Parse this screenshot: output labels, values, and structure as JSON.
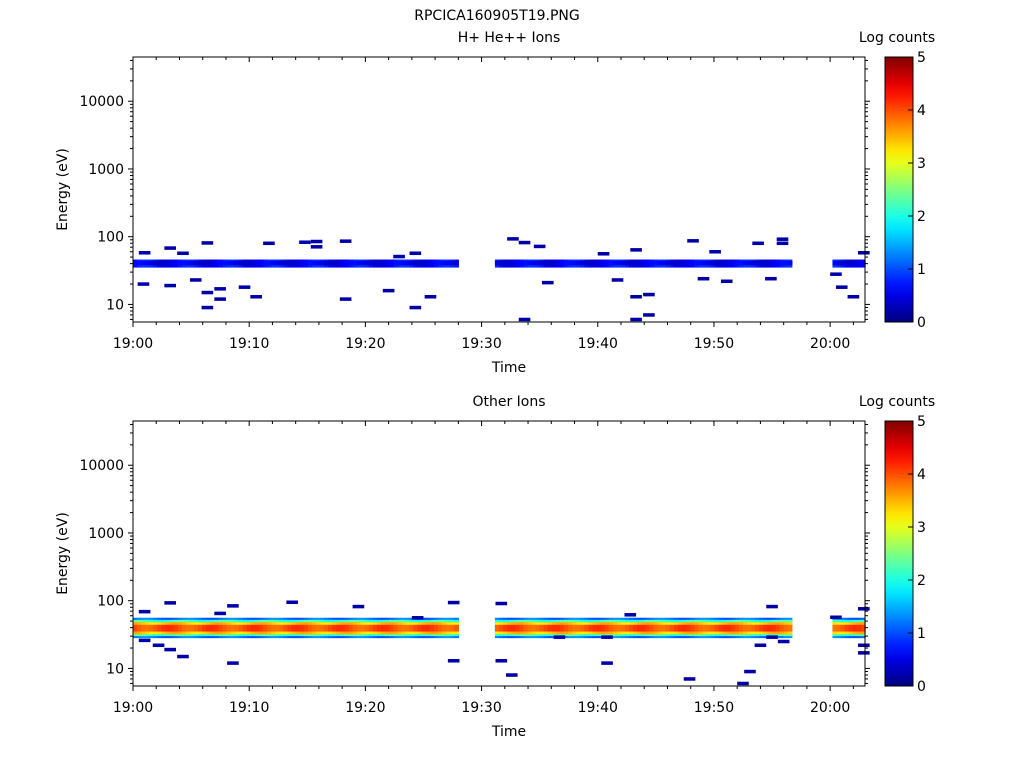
{
  "figure_title": "RPCICA160905T19.PNG",
  "chart_data": [
    {
      "type": "heatmap",
      "title": "H+ He++ Ions",
      "xlabel": "Time",
      "ylabel": "Energy (eV)",
      "x_ticks": [
        "19:00",
        "19:10",
        "19:20",
        "19:30",
        "19:40",
        "19:50",
        "20:00"
      ],
      "x_range_minutes": [
        0,
        63
      ],
      "y_scale": "log",
      "y_ticks": [
        "10",
        "100",
        "1000",
        "10000"
      ],
      "ylim": [
        5.5,
        45000
      ],
      "colorbar": {
        "label": "Log counts",
        "ticks": [
          "0",
          "1",
          "2",
          "3",
          "4",
          "5"
        ],
        "range": [
          0,
          5
        ],
        "colormap": "jet"
      },
      "data_gaps_minutes": [
        [
          28,
          31
        ],
        [
          56.5,
          60
        ]
      ],
      "bands": [
        {
          "energy_range": [
            35,
            46
          ],
          "log_counts": 0.7
        },
        {
          "energy_range": [
            38,
            44
          ],
          "log_counts": 0.5
        }
      ],
      "scatter_points": [
        {
          "t": 0.5,
          "e": 58,
          "c": 0.2
        },
        {
          "t": 0.4,
          "e": 20,
          "c": 0.2
        },
        {
          "t": 2.7,
          "e": 68,
          "c": 0.2
        },
        {
          "t": 2.7,
          "e": 19,
          "c": 0.2
        },
        {
          "t": 3.8,
          "e": 57,
          "c": 0.2
        },
        {
          "t": 4.9,
          "e": 23,
          "c": 0.2
        },
        {
          "t": 5.9,
          "e": 81,
          "c": 0.2
        },
        {
          "t": 5.9,
          "e": 15,
          "c": 0.2
        },
        {
          "t": 5.9,
          "e": 9,
          "c": 0.2
        },
        {
          "t": 7.0,
          "e": 17,
          "c": 0.2
        },
        {
          "t": 7.0,
          "e": 12,
          "c": 0.2
        },
        {
          "t": 9.1,
          "e": 18,
          "c": 0.2
        },
        {
          "t": 10.1,
          "e": 13,
          "c": 0.2
        },
        {
          "t": 11.2,
          "e": 80,
          "c": 0.2
        },
        {
          "t": 14.3,
          "e": 83,
          "c": 0.2
        },
        {
          "t": 15.3,
          "e": 85,
          "c": 0.2
        },
        {
          "t": 15.3,
          "e": 71,
          "c": 0.2
        },
        {
          "t": 17.8,
          "e": 86,
          "c": 0.2
        },
        {
          "t": 17.8,
          "e": 12,
          "c": 0.2
        },
        {
          "t": 21.5,
          "e": 16,
          "c": 0.2
        },
        {
          "t": 22.4,
          "e": 51,
          "c": 0.2
        },
        {
          "t": 23.8,
          "e": 57,
          "c": 0.2
        },
        {
          "t": 23.8,
          "e": 9,
          "c": 0.2
        },
        {
          "t": 25.1,
          "e": 13,
          "c": 0.2
        },
        {
          "t": 32.2,
          "e": 93,
          "c": 0.2
        },
        {
          "t": 33.2,
          "e": 82,
          "c": 0.2
        },
        {
          "t": 33.2,
          "e": 6,
          "c": 0.2
        },
        {
          "t": 34.5,
          "e": 72,
          "c": 0.2
        },
        {
          "t": 35.2,
          "e": 21,
          "c": 0.2
        },
        {
          "t": 40.0,
          "e": 56,
          "c": 0.2
        },
        {
          "t": 41.2,
          "e": 23,
          "c": 0.2
        },
        {
          "t": 42.8,
          "e": 64,
          "c": 0.2
        },
        {
          "t": 42.8,
          "e": 13,
          "c": 0.2
        },
        {
          "t": 42.8,
          "e": 6,
          "c": 0.2
        },
        {
          "t": 43.9,
          "e": 14,
          "c": 0.2
        },
        {
          "t": 43.9,
          "e": 7,
          "c": 0.2
        },
        {
          "t": 47.7,
          "e": 87,
          "c": 0.2
        },
        {
          "t": 48.6,
          "e": 24,
          "c": 0.2
        },
        {
          "t": 49.6,
          "e": 60,
          "c": 0.2
        },
        {
          "t": 50.6,
          "e": 22,
          "c": 0.2
        },
        {
          "t": 53.3,
          "e": 80,
          "c": 0.2
        },
        {
          "t": 54.4,
          "e": 24,
          "c": 0.2
        },
        {
          "t": 55.4,
          "e": 92,
          "c": 0.2
        },
        {
          "t": 55.4,
          "e": 80,
          "c": 0.2
        },
        {
          "t": 60.0,
          "e": 28,
          "c": 0.2
        },
        {
          "t": 60.5,
          "e": 18,
          "c": 0.2
        },
        {
          "t": 61.5,
          "e": 13,
          "c": 0.2
        },
        {
          "t": 62.4,
          "e": 58,
          "c": 0.2
        }
      ]
    },
    {
      "type": "heatmap",
      "title": "Other Ions",
      "xlabel": "Time",
      "ylabel": "Energy (eV)",
      "x_ticks": [
        "19:00",
        "19:10",
        "19:20",
        "19:30",
        "19:40",
        "19:50",
        "20:00"
      ],
      "x_range_minutes": [
        0,
        63
      ],
      "y_scale": "log",
      "y_ticks": [
        "10",
        "100",
        "1000",
        "10000"
      ],
      "ylim": [
        5.5,
        45000
      ],
      "colorbar": {
        "label": "Log counts",
        "ticks": [
          "0",
          "1",
          "2",
          "3",
          "4",
          "5"
        ],
        "range": [
          0,
          5
        ],
        "colormap": "jet"
      },
      "data_gaps_minutes": [
        [
          28,
          31
        ],
        [
          56.5,
          60
        ]
      ],
      "bands": [
        {
          "energy_range": [
            28,
            56
          ],
          "log_counts": 1.2
        },
        {
          "energy_range": [
            30,
            52
          ],
          "log_counts": 2.2
        },
        {
          "energy_range": [
            32,
            48
          ],
          "log_counts": 3.4
        },
        {
          "energy_range": [
            35,
            44
          ],
          "log_counts": 4.0
        }
      ],
      "scatter_points": [
        {
          "t": 0.5,
          "e": 69,
          "c": 0.2
        },
        {
          "t": 0.5,
          "e": 26,
          "c": 0.2
        },
        {
          "t": 1.7,
          "e": 22,
          "c": 0.2
        },
        {
          "t": 2.7,
          "e": 93,
          "c": 0.2
        },
        {
          "t": 2.7,
          "e": 19,
          "c": 0.2
        },
        {
          "t": 3.8,
          "e": 15,
          "c": 0.2
        },
        {
          "t": 7.0,
          "e": 65,
          "c": 0.2
        },
        {
          "t": 8.1,
          "e": 84,
          "c": 0.2
        },
        {
          "t": 8.1,
          "e": 12,
          "c": 0.2
        },
        {
          "t": 13.2,
          "e": 95,
          "c": 0.2
        },
        {
          "t": 18.9,
          "e": 82,
          "c": 0.2
        },
        {
          "t": 24.0,
          "e": 56,
          "c": 0.2
        },
        {
          "t": 27.1,
          "e": 94,
          "c": 0.2
        },
        {
          "t": 27.1,
          "e": 13,
          "c": 0.2
        },
        {
          "t": 31.2,
          "e": 91,
          "c": 0.2
        },
        {
          "t": 31.2,
          "e": 13,
          "c": 0.2
        },
        {
          "t": 32.1,
          "e": 8,
          "c": 0.2
        },
        {
          "t": 36.2,
          "e": 29,
          "c": 0.2
        },
        {
          "t": 40.3,
          "e": 29,
          "c": 0.2
        },
        {
          "t": 40.3,
          "e": 12,
          "c": 0.2
        },
        {
          "t": 42.3,
          "e": 62,
          "c": 0.2
        },
        {
          "t": 47.4,
          "e": 7,
          "c": 0.2
        },
        {
          "t": 52.0,
          "e": 6,
          "c": 0.2
        },
        {
          "t": 52.6,
          "e": 9,
          "c": 0.2
        },
        {
          "t": 53.5,
          "e": 22,
          "c": 0.2
        },
        {
          "t": 54.5,
          "e": 82,
          "c": 0.2
        },
        {
          "t": 54.5,
          "e": 29,
          "c": 0.2
        },
        {
          "t": 55.5,
          "e": 25,
          "c": 0.2
        },
        {
          "t": 60.0,
          "e": 57,
          "c": 0.2
        },
        {
          "t": 62.4,
          "e": 76,
          "c": 0.2
        },
        {
          "t": 62.4,
          "e": 22,
          "c": 0.2
        },
        {
          "t": 62.4,
          "e": 17,
          "c": 0.2
        }
      ]
    }
  ]
}
